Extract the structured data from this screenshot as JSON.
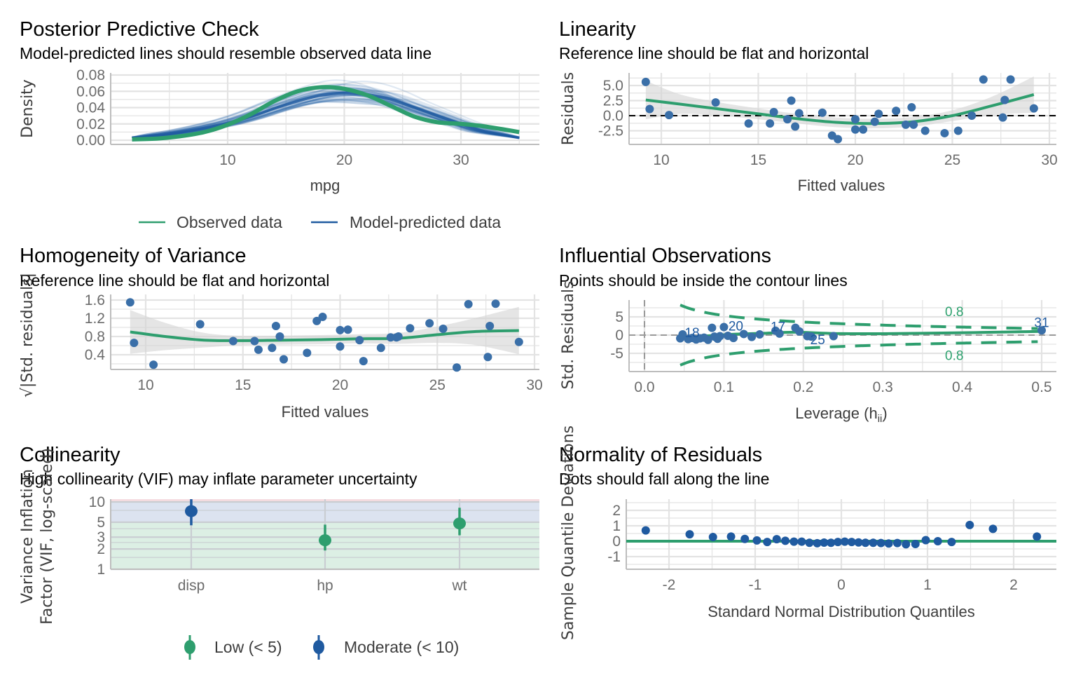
{
  "colors": {
    "green": "#2e9e6e",
    "blue": "#1f5aa0",
    "point_blue": "#3a6fa8",
    "grid": "#e3e3e3",
    "axis": "#bdbdbd",
    "ribbon": "#d9d9d9",
    "vif_low": "#dcefe4",
    "vif_moderate": "#dce3f0",
    "vif_high": "#f5dbe0"
  },
  "chart_data": [
    {
      "id": "ppc",
      "type": "line",
      "title": "Posterior Predictive Check",
      "subtitle": "Model-predicted lines should resemble observed data line",
      "xlabel": "mpg",
      "ylabel": "Density",
      "xlim": [
        1.5,
        36.5
      ],
      "ylim": [
        0,
        0.083
      ],
      "xticks": [
        10,
        20,
        30
      ],
      "xtick_labels": [
        "10",
        "20",
        "30"
      ],
      "yticks": [
        0,
        0.02,
        0.04,
        0.06,
        0.08
      ],
      "ytick_labels": [
        "0.00",
        "0.02",
        "0.04",
        "0.06",
        "0.08"
      ],
      "legend": {
        "position": "bottom",
        "entries": [
          {
            "label": "Observed data",
            "color": "green"
          },
          {
            "label": "Model-predicted data",
            "color": "blue"
          }
        ]
      },
      "observed": {
        "x": [
          1.8,
          4,
          6,
          8,
          10,
          12,
          14,
          16,
          18,
          20,
          22,
          24,
          26,
          28,
          30,
          32,
          35
        ],
        "y": [
          0.001,
          0.002,
          0.005,
          0.01,
          0.019,
          0.032,
          0.048,
          0.06,
          0.065,
          0.063,
          0.055,
          0.042,
          0.029,
          0.022,
          0.02,
          0.017,
          0.01
        ]
      },
      "predicted_mean": {
        "x": [
          1.8,
          4,
          6,
          8,
          10,
          12,
          14,
          16,
          18,
          20,
          22,
          24,
          26,
          28,
          30,
          32,
          35
        ],
        "y": [
          0.003,
          0.006,
          0.01,
          0.015,
          0.021,
          0.029,
          0.039,
          0.048,
          0.055,
          0.058,
          0.056,
          0.05,
          0.04,
          0.03,
          0.02,
          0.011,
          0.003
        ]
      },
      "predicted_draws": 50
    },
    {
      "id": "linearity",
      "type": "scatter",
      "title": "Linearity",
      "subtitle": "Reference line should be flat and horizontal",
      "xlabel": "Fitted values",
      "ylabel": "Residuals",
      "xlim": [
        8.2,
        30.4
      ],
      "ylim": [
        -4.4,
        7.0
      ],
      "xticks": [
        10,
        15,
        20,
        25,
        30
      ],
      "xtick_labels": [
        "10",
        "15",
        "20",
        "25",
        "30"
      ],
      "yticks": [
        -2.5,
        0,
        2.5,
        5.0
      ],
      "ytick_labels": [
        "-2.5",
        "0.0",
        "2.5",
        "5.0"
      ],
      "reference_line": 0,
      "points": [
        [
          9.2,
          5.6
        ],
        [
          9.4,
          1.1
        ],
        [
          10.4,
          0.1
        ],
        [
          12.8,
          2.2
        ],
        [
          14.5,
          -1.3
        ],
        [
          15.6,
          -1.3
        ],
        [
          15.8,
          0.6
        ],
        [
          16.5,
          -0.6
        ],
        [
          16.7,
          2.5
        ],
        [
          16.9,
          -1.8
        ],
        [
          17.1,
          0.4
        ],
        [
          18.3,
          0.5
        ],
        [
          18.8,
          -3.3
        ],
        [
          19.1,
          -3.9
        ],
        [
          20.0,
          -0.6
        ],
        [
          20.0,
          -2.3
        ],
        [
          20.4,
          -2.3
        ],
        [
          21.0,
          -1.0
        ],
        [
          21.2,
          0.3
        ],
        [
          22.1,
          0.8
        ],
        [
          22.6,
          -1.5
        ],
        [
          22.9,
          1.4
        ],
        [
          23.0,
          -1.5
        ],
        [
          23.6,
          -2.5
        ],
        [
          24.6,
          -2.9
        ],
        [
          25.3,
          -2.5
        ],
        [
          26.0,
          0.0
        ],
        [
          26.6,
          6.0
        ],
        [
          27.6,
          -0.3
        ],
        [
          27.7,
          2.6
        ],
        [
          28.0,
          6.0
        ],
        [
          29.2,
          1.2
        ]
      ],
      "smooth": {
        "x": [
          9.2,
          11,
          13,
          15,
          17,
          19,
          21,
          23,
          25,
          27,
          29.2
        ],
        "y": [
          2.6,
          1.9,
          1.1,
          0.3,
          -0.5,
          -1.1,
          -1.3,
          -1.0,
          0.0,
          1.6,
          3.5
        ],
        "ribbon_half_width": [
          3.2,
          1.6,
          1.1,
          0.9,
          0.8,
          0.8,
          0.8,
          0.8,
          0.9,
          1.5,
          3.0
        ]
      }
    },
    {
      "id": "homogeneity",
      "type": "scatter",
      "title": "Homogeneity of Variance",
      "subtitle": "Reference line should be flat and horizontal",
      "xlabel": "Fitted values",
      "ylabel": "√|Std. residuals|",
      "xlim": [
        8.2,
        30.4
      ],
      "ylim": [
        0.05,
        1.65
      ],
      "xticks": [
        10,
        15,
        20,
        25,
        30
      ],
      "xtick_labels": [
        "10",
        "15",
        "20",
        "25",
        "30"
      ],
      "yticks": [
        0.4,
        0.8,
        1.2,
        1.6
      ],
      "ytick_labels": [
        "0.4",
        "0.8",
        "1.2",
        "1.6"
      ],
      "points": [
        [
          9.2,
          1.55
        ],
        [
          9.4,
          0.66
        ],
        [
          10.4,
          0.18
        ],
        [
          12.8,
          1.07
        ],
        [
          14.5,
          0.7
        ],
        [
          15.6,
          0.7
        ],
        [
          15.8,
          0.51
        ],
        [
          16.5,
          0.55
        ],
        [
          16.7,
          1.03
        ],
        [
          16.9,
          0.8
        ],
        [
          17.1,
          0.3
        ],
        [
          18.3,
          0.44
        ],
        [
          18.8,
          1.14
        ],
        [
          19.1,
          1.23
        ],
        [
          20.0,
          0.58
        ],
        [
          20.0,
          0.94
        ],
        [
          20.4,
          0.95
        ],
        [
          21.0,
          0.72
        ],
        [
          21.2,
          0.26
        ],
        [
          22.1,
          0.55
        ],
        [
          22.6,
          0.78
        ],
        [
          22.9,
          0.78
        ],
        [
          23.0,
          0.8
        ],
        [
          23.6,
          0.98
        ],
        [
          24.6,
          1.09
        ],
        [
          25.3,
          0.97
        ],
        [
          26.0,
          0.12
        ],
        [
          26.6,
          1.51
        ],
        [
          27.6,
          0.35
        ],
        [
          27.7,
          1.03
        ],
        [
          28.0,
          1.52
        ],
        [
          29.2,
          0.68
        ]
      ],
      "smooth": {
        "x": [
          9.2,
          11,
          13,
          15,
          17,
          19,
          21,
          23,
          25,
          27,
          29.2
        ],
        "y": [
          0.9,
          0.8,
          0.72,
          0.71,
          0.72,
          0.73,
          0.75,
          0.76,
          0.84,
          0.91,
          0.93
        ],
        "ribbon_half_width": [
          0.48,
          0.3,
          0.16,
          0.1,
          0.1,
          0.1,
          0.1,
          0.12,
          0.18,
          0.3,
          0.52
        ]
      }
    },
    {
      "id": "influential",
      "type": "scatter",
      "title": "Influential Observations",
      "subtitle": "Points should be inside the contour lines",
      "xlabel": "Leverage (h",
      "xlabel_sub": "ii",
      "xlabel_close": ")",
      "ylabel": "Std. Residuals",
      "xlim": [
        -0.02,
        0.52
      ],
      "ylim": [
        -9.5,
        9.5
      ],
      "xticks": [
        0,
        0.1,
        0.2,
        0.3,
        0.4,
        0.5
      ],
      "xtick_labels": [
        "0.0",
        "0.1",
        "0.2",
        "0.3",
        "0.4",
        "0.5"
      ],
      "yticks": [
        -5,
        0,
        5
      ],
      "ytick_labels": [
        "-5",
        "0",
        "5"
      ],
      "points": [
        [
          0.045,
          -0.9
        ],
        [
          0.048,
          0.2
        ],
        [
          0.055,
          -1.1
        ],
        [
          0.06,
          -0.8
        ],
        [
          0.065,
          -1.2
        ],
        [
          0.07,
          -0.9
        ],
        [
          0.075,
          -0.7
        ],
        [
          0.08,
          -1.3
        ],
        [
          0.085,
          2.0
        ],
        [
          0.088,
          -0.4
        ],
        [
          0.092,
          -1.0
        ],
        [
          0.095,
          -0.3
        ],
        [
          0.1,
          2.2
        ],
        [
          0.105,
          -0.2
        ],
        [
          0.112,
          -0.8
        ],
        [
          0.125,
          0.3
        ],
        [
          0.135,
          -0.5
        ],
        [
          0.145,
          0.2
        ],
        [
          0.165,
          1.2
        ],
        [
          0.17,
          0.4
        ],
        [
          0.19,
          2.0
        ],
        [
          0.195,
          1.0
        ],
        [
          0.205,
          -0.3
        ],
        [
          0.21,
          -0.4
        ],
        [
          0.238,
          -0.3
        ],
        [
          0.5,
          1.3
        ]
      ],
      "point_labels": [
        {
          "label": "18",
          "x": 0.06,
          "y": 0.8
        },
        {
          "label": "20",
          "x": 0.115,
          "y": 2.6
        },
        {
          "label": "17",
          "x": 0.168,
          "y": 2.4
        },
        {
          "label": "25",
          "x": 0.218,
          "y": -1.2
        },
        {
          "label": "31",
          "x": 0.5,
          "y": 3.6
        }
      ],
      "smooth": {
        "x": [
          0.045,
          0.1,
          0.15,
          0.19,
          0.25,
          0.35,
          0.5
        ],
        "y": [
          -0.8,
          0.1,
          0.5,
          0.8,
          0.4,
          0.5,
          1.0
        ]
      },
      "contour_level": "0.8",
      "contour_labels": [
        {
          "label": "0.8",
          "x": 0.39,
          "y": 6.5
        },
        {
          "label": "0.8",
          "x": 0.39,
          "y": -5.5
        }
      ]
    },
    {
      "id": "collinearity",
      "type": "scatter",
      "title": "Collinearity",
      "subtitle": "High collinearity (VIF) may inflate parameter uncertainty",
      "xlabel": "",
      "ylabel_lines": [
        "Variance Inflation",
        "Factor (VIF, log-scaled)"
      ],
      "yscale": "log",
      "ylim": [
        1,
        11
      ],
      "yticks": [
        1,
        2,
        3,
        5,
        10
      ],
      "ytick_labels": [
        "1",
        "2",
        "3",
        "5",
        "10"
      ],
      "categories": [
        "disp",
        "hp",
        "wt"
      ],
      "vif": [
        7.3,
        2.7,
        4.8
      ],
      "ci_low": [
        4.5,
        1.9,
        3.2
      ],
      "ci_high": [
        11,
        4.6,
        8.2
      ],
      "group": [
        "moderate",
        "low",
        "low"
      ],
      "bands": [
        {
          "name": "low",
          "from": 1,
          "to": 5
        },
        {
          "name": "moderate",
          "from": 5,
          "to": 10
        },
        {
          "name": "high",
          "from": 10,
          "to": 11
        }
      ],
      "legend": {
        "position": "bottom",
        "entries": [
          {
            "label": "Low (< 5)",
            "color": "green"
          },
          {
            "label": "Moderate (< 10)",
            "color": "blue"
          }
        ]
      }
    },
    {
      "id": "normality",
      "type": "scatter",
      "title": "Normality of Residuals",
      "subtitle": "Dots should fall along the line",
      "xlabel": "Standard Normal Distribution Quantiles",
      "ylabel": "Sample Quantile Deviations",
      "xlim": [
        -2.5,
        2.5
      ],
      "ylim": [
        -1.6,
        2.7
      ],
      "xticks": [
        -2,
        -1,
        0,
        1,
        2
      ],
      "xtick_labels": [
        "-2",
        "-1",
        "0",
        "1",
        "2"
      ],
      "yticks": [
        -1,
        0,
        1,
        2
      ],
      "ytick_labels": [
        "-1",
        "0",
        "1",
        "2"
      ],
      "reference_line": 0,
      "points": [
        [
          -2.27,
          0.7
        ],
        [
          -1.76,
          0.45
        ],
        [
          -1.49,
          0.27
        ],
        [
          -1.28,
          0.3
        ],
        [
          -1.12,
          0.15
        ],
        [
          -0.98,
          0.05
        ],
        [
          -0.86,
          -0.05
        ],
        [
          -0.75,
          0.13
        ],
        [
          -0.65,
          0.03
        ],
        [
          -0.55,
          -0.03
        ],
        [
          -0.46,
          -0.03
        ],
        [
          -0.37,
          -0.1
        ],
        [
          -0.28,
          -0.13
        ],
        [
          -0.2,
          -0.09
        ],
        [
          -0.12,
          -0.1
        ],
        [
          -0.04,
          -0.05
        ],
        [
          0.04,
          -0.03
        ],
        [
          0.12,
          -0.05
        ],
        [
          0.2,
          -0.08
        ],
        [
          0.28,
          -0.1
        ],
        [
          0.37,
          -0.1
        ],
        [
          0.46,
          -0.12
        ],
        [
          0.55,
          -0.15
        ],
        [
          0.65,
          -0.12
        ],
        [
          0.75,
          -0.2
        ],
        [
          0.86,
          -0.18
        ],
        [
          0.98,
          0.07
        ],
        [
          1.12,
          0.0
        ],
        [
          1.28,
          -0.05
        ],
        [
          1.49,
          1.05
        ],
        [
          1.76,
          0.8
        ],
        [
          2.27,
          0.3
        ]
      ]
    }
  ]
}
